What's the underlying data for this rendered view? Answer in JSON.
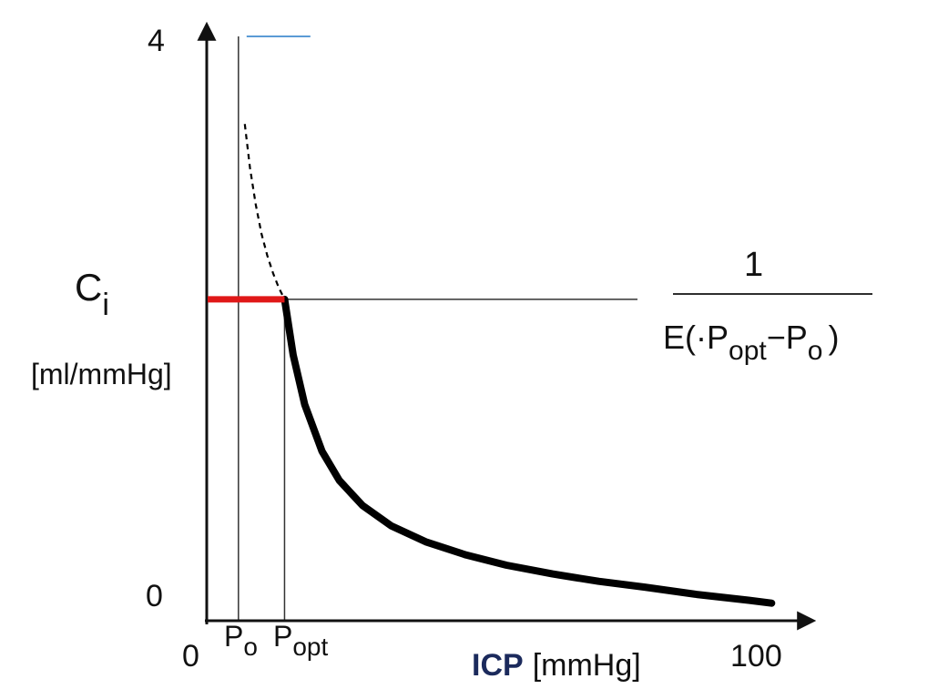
{
  "chart_data": {
    "type": "line",
    "title": "",
    "xlabel_bold": "ICP",
    "xlabel_unit": "[mmHg]",
    "ylabel_symbol": "C",
    "ylabel_sub": "i",
    "ylabel_unit": "[ml/mmHg]",
    "xlim": [
      0,
      100
    ],
    "ylim": [
      0,
      4
    ],
    "x_tick_labels": {
      "start": "0",
      "end": "100"
    },
    "y_tick_labels": {
      "bottom": "0",
      "top": "4"
    },
    "p0": {
      "value": 5.5,
      "main": "P",
      "sub": "o"
    },
    "popt": {
      "value": 13.5,
      "main": "P",
      "sub": "opt"
    },
    "ci_at_popt": 2.2,
    "curve": {
      "formula_numerator": "1",
      "formula_denominator": {
        "prefix": "E(·",
        "p1_main": "P",
        "p1_sub": "opt",
        "minus": "−",
        "p2_main": "P",
        "p2_sub": "o",
        "suffix": ")"
      },
      "dashed_series": {
        "name": "dashed-segment",
        "x": [
          6.6,
          7.5,
          8.5,
          9.5,
          10.5,
          11.5,
          12.5,
          13.5
        ],
        "y": [
          3.4,
          3.1,
          2.85,
          2.65,
          2.5,
          2.38,
          2.28,
          2.2
        ]
      },
      "solid_series": {
        "name": "solid-curve",
        "x": [
          13.5,
          15,
          17,
          20,
          23,
          27,
          32,
          38,
          45,
          52,
          60,
          68,
          76,
          85,
          94,
          98
        ],
        "y": [
          2.2,
          1.82,
          1.48,
          1.16,
          0.96,
          0.79,
          0.65,
          0.54,
          0.45,
          0.38,
          0.32,
          0.27,
          0.23,
          0.18,
          0.14,
          0.12
        ]
      }
    },
    "colors": {
      "axis": "#111111",
      "curve": "#000000",
      "highlight": "#e01818",
      "top_marker": "#5b9bd5",
      "guide": "#333333"
    }
  }
}
